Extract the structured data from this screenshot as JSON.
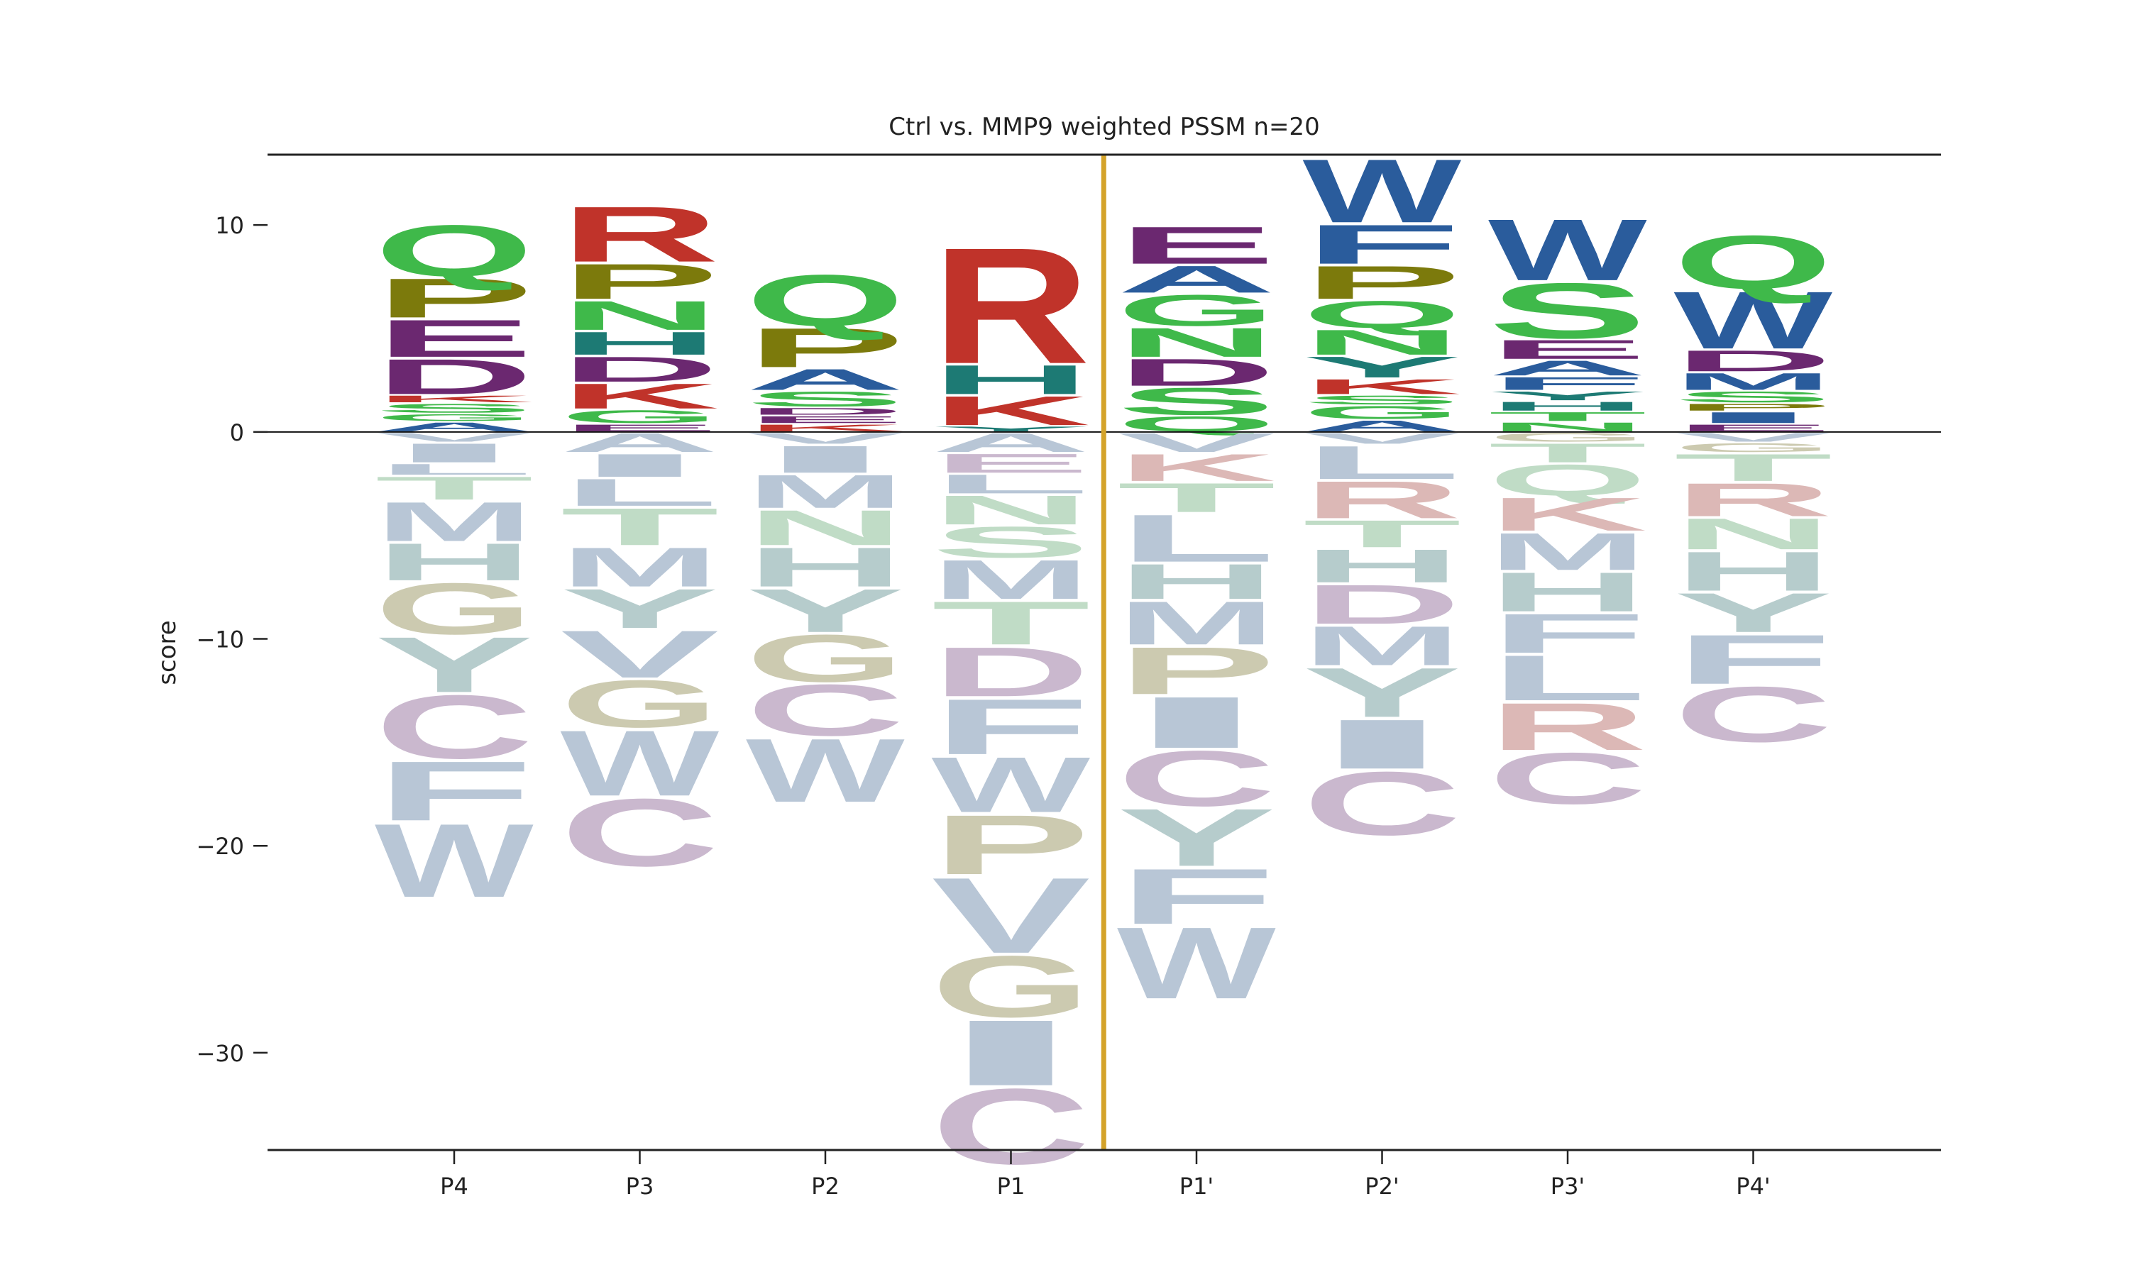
{
  "chart_data": {
    "type": "sequence-logo",
    "title": "Ctrl vs. MMP9 weighted PSSM n=20",
    "xlabel": "",
    "ylabel": "score",
    "ylim": [
      -34.7,
      13.4
    ],
    "yticks": [
      10,
      0,
      -10,
      -20,
      -30
    ],
    "ytick_labels": [
      "10",
      "0",
      "−10",
      "−20",
      "−30"
    ],
    "categories": [
      "P4",
      "P3",
      "P2",
      "P1",
      "P1'",
      "P2'",
      "P3'",
      "P4'"
    ],
    "cleavage_line_after": "P1",
    "cleavage_line_color": "#d4a32a",
    "grid": false,
    "legend": "none",
    "positions": [
      {
        "label": "P4",
        "positive": [
          {
            "letter": "A",
            "value": 0.5
          },
          {
            "letter": "G",
            "value": 0.4
          },
          {
            "letter": "S",
            "value": 0.5
          },
          {
            "letter": "K",
            "value": 0.4
          },
          {
            "letter": "D",
            "value": 1.8
          },
          {
            "letter": "E",
            "value": 1.9
          },
          {
            "letter": "P",
            "value": 2.0
          },
          {
            "letter": "Q",
            "value": 2.6
          }
        ],
        "negative": [
          {
            "letter": "V",
            "value": -0.5
          },
          {
            "letter": "I",
            "value": -1.0
          },
          {
            "letter": "L",
            "value": -0.6
          },
          {
            "letter": "T",
            "value": -1.2
          },
          {
            "letter": "M",
            "value": -2.0
          },
          {
            "letter": "H",
            "value": -1.9
          },
          {
            "letter": "G",
            "value": -2.6
          },
          {
            "letter": "Y",
            "value": -2.8
          },
          {
            "letter": "C",
            "value": -3.2
          },
          {
            "letter": "F",
            "value": -3.0
          },
          {
            "letter": "W",
            "value": -3.7
          }
        ]
      },
      {
        "label": "P3",
        "positive": [
          {
            "letter": "E",
            "value": 0.4
          },
          {
            "letter": "G",
            "value": 0.7
          },
          {
            "letter": "K",
            "value": 1.3
          },
          {
            "letter": "D",
            "value": 1.3
          },
          {
            "letter": "H",
            "value": 1.2
          },
          {
            "letter": "N",
            "value": 1.5
          },
          {
            "letter": "P",
            "value": 1.8
          },
          {
            "letter": "R",
            "value": 2.8
          }
        ],
        "negative": [
          {
            "letter": "A",
            "value": -1.0
          },
          {
            "letter": "I",
            "value": -1.2
          },
          {
            "letter": "L",
            "value": -1.4
          },
          {
            "letter": "T",
            "value": -1.9
          },
          {
            "letter": "M",
            "value": -2.0
          },
          {
            "letter": "Y",
            "value": -2.0
          },
          {
            "letter": "V",
            "value": -2.4
          },
          {
            "letter": "G",
            "value": -2.4
          },
          {
            "letter": "W",
            "value": -3.3
          },
          {
            "letter": "C",
            "value": -3.4
          }
        ]
      },
      {
        "label": "P2",
        "positive": [
          {
            "letter": "K",
            "value": 0.4
          },
          {
            "letter": "E",
            "value": 0.4
          },
          {
            "letter": "D",
            "value": 0.4
          },
          {
            "letter": "S",
            "value": 0.8
          },
          {
            "letter": "A",
            "value": 1.1
          },
          {
            "letter": "P",
            "value": 2.0
          },
          {
            "letter": "Q",
            "value": 2.6
          }
        ],
        "negative": [
          {
            "letter": "V",
            "value": -0.6
          },
          {
            "letter": "I",
            "value": -1.4
          },
          {
            "letter": "M",
            "value": -1.7
          },
          {
            "letter": "N",
            "value": -1.8
          },
          {
            "letter": "H",
            "value": -2.0
          },
          {
            "letter": "Y",
            "value": -2.2
          },
          {
            "letter": "G",
            "value": -2.4
          },
          {
            "letter": "C",
            "value": -2.6
          },
          {
            "letter": "W",
            "value": -3.2
          }
        ]
      },
      {
        "label": "P1",
        "positive": [
          {
            "letter": "Y",
            "value": 0.3
          },
          {
            "letter": "K",
            "value": 1.5
          },
          {
            "letter": "H",
            "value": 1.5
          },
          {
            "letter": "R",
            "value": 5.8
          }
        ],
        "negative": [
          {
            "letter": "A",
            "value": -1.0
          },
          {
            "letter": "E",
            "value": -1.0
          },
          {
            "letter": "L",
            "value": -1.0
          },
          {
            "letter": "N",
            "value": -1.5
          },
          {
            "letter": "S",
            "value": -1.6
          },
          {
            "letter": "M",
            "value": -2.0
          },
          {
            "letter": "T",
            "value": -2.2
          },
          {
            "letter": "D",
            "value": -2.5
          },
          {
            "letter": "F",
            "value": -2.8
          },
          {
            "letter": "W",
            "value": -2.8
          },
          {
            "letter": "P",
            "value": -3.0
          },
          {
            "letter": "V",
            "value": -3.8
          },
          {
            "letter": "G",
            "value": -3.1
          },
          {
            "letter": "I",
            "value": -3.3
          },
          {
            "letter": "C",
            "value": -3.8
          }
        ]
      },
      {
        "label": "P1'",
        "positive": [
          {
            "letter": "Q",
            "value": 0.8
          },
          {
            "letter": "S",
            "value": 1.4
          },
          {
            "letter": "D",
            "value": 1.4
          },
          {
            "letter": "N",
            "value": 1.5
          },
          {
            "letter": "G",
            "value": 1.6
          },
          {
            "letter": "A",
            "value": 1.4
          },
          {
            "letter": "E",
            "value": 1.9
          }
        ],
        "negative": [
          {
            "letter": "V",
            "value": -1.0
          },
          {
            "letter": "K",
            "value": -1.4
          },
          {
            "letter": "T",
            "value": -1.5
          },
          {
            "letter": "L",
            "value": -2.4
          },
          {
            "letter": "H",
            "value": -1.8
          },
          {
            "letter": "M",
            "value": -2.2
          },
          {
            "letter": "P",
            "value": -2.4
          },
          {
            "letter": "I",
            "value": -2.6
          },
          {
            "letter": "C",
            "value": -2.8
          },
          {
            "letter": "Y",
            "value": -2.9
          },
          {
            "letter": "F",
            "value": -2.8
          },
          {
            "letter": "W",
            "value": -3.6
          }
        ]
      },
      {
        "label": "P2'",
        "positive": [
          {
            "letter": "A",
            "value": 0.6
          },
          {
            "letter": "G",
            "value": 0.7
          },
          {
            "letter": "S",
            "value": 0.5
          },
          {
            "letter": "K",
            "value": 0.8
          },
          {
            "letter": "Y",
            "value": 1.1
          },
          {
            "letter": "N",
            "value": 1.3
          },
          {
            "letter": "Q",
            "value": 1.4
          },
          {
            "letter": "P",
            "value": 1.7
          },
          {
            "letter": "F",
            "value": 2.0
          },
          {
            "letter": "W",
            "value": 3.2
          }
        ],
        "negative": [
          {
            "letter": "V",
            "value": -0.6
          },
          {
            "letter": "L",
            "value": -1.7
          },
          {
            "letter": "R",
            "value": -1.9
          },
          {
            "letter": "T",
            "value": -1.4
          },
          {
            "letter": "H",
            "value": -1.7
          },
          {
            "letter": "D",
            "value": -2.0
          },
          {
            "letter": "M",
            "value": -2.0
          },
          {
            "letter": "Y",
            "value": -2.5
          },
          {
            "letter": "I",
            "value": -2.5
          },
          {
            "letter": "C",
            "value": -3.2
          }
        ]
      },
      {
        "label": "P3'",
        "positive": [
          {
            "letter": "N",
            "value": 0.5
          },
          {
            "letter": "T",
            "value": 0.5
          },
          {
            "letter": "H",
            "value": 0.5
          },
          {
            "letter": "Y",
            "value": 0.5
          },
          {
            "letter": "F",
            "value": 0.7
          },
          {
            "letter": "A",
            "value": 0.8
          },
          {
            "letter": "E",
            "value": 1.0
          },
          {
            "letter": "S",
            "value": 2.8
          },
          {
            "letter": "W",
            "value": 3.1
          }
        ],
        "negative": [
          {
            "letter": "G",
            "value": -0.5
          },
          {
            "letter": "T",
            "value": -1.0
          },
          {
            "letter": "Q",
            "value": -1.6
          },
          {
            "letter": "K",
            "value": -1.7
          },
          {
            "letter": "M",
            "value": -1.9
          },
          {
            "letter": "H",
            "value": -2.0
          },
          {
            "letter": "F",
            "value": -2.0
          },
          {
            "letter": "L",
            "value": -2.3
          },
          {
            "letter": "R",
            "value": -2.4
          },
          {
            "letter": "C",
            "value": -2.6
          }
        ]
      },
      {
        "label": "P4'",
        "positive": [
          {
            "letter": "E",
            "value": 0.4
          },
          {
            "letter": "I",
            "value": 0.6
          },
          {
            "letter": "P",
            "value": 0.4
          },
          {
            "letter": "S",
            "value": 0.6
          },
          {
            "letter": "M",
            "value": 0.9
          },
          {
            "letter": "D",
            "value": 1.1
          },
          {
            "letter": "W",
            "value": 2.9
          },
          {
            "letter": "Q",
            "value": 2.7
          }
        ],
        "negative": [
          {
            "letter": "V",
            "value": -0.5
          },
          {
            "letter": "G",
            "value": -0.5
          },
          {
            "letter": "T",
            "value": -1.4
          },
          {
            "letter": "R",
            "value": -1.7
          },
          {
            "letter": "N",
            "value": -1.6
          },
          {
            "letter": "H",
            "value": -2.0
          },
          {
            "letter": "Y",
            "value": -2.0
          },
          {
            "letter": "F",
            "value": -2.5
          },
          {
            "letter": "C",
            "value": -2.8
          }
        ]
      }
    ],
    "colors": {
      "R": "#c0332a",
      "K": "#c0332a",
      "H": "#1d7a74",
      "D": "#6b2870",
      "E": "#6b2870",
      "Q": "#3fb94a",
      "N": "#3fb94a",
      "S": "#3fb94a",
      "T": "#3fb94a",
      "G": "#3fb94a",
      "C": "#3fb94a",
      "Y": "#1d7a74",
      "P": "#7c7a0c",
      "A": "#2a5c9c",
      "V": "#2a5c9c",
      "L": "#2a5c9c",
      "I": "#2a5c9c",
      "M": "#2a5c9c",
      "F": "#2a5c9c",
      "W": "#2a5c9c"
    },
    "negative_colors": {
      "R": "#dcb8b6",
      "K": "#dcb8b6",
      "H": "#b6cccc",
      "D": "#cab8ce",
      "E": "#cab8ce",
      "Q": "#c0dcc6",
      "N": "#c0dcc6",
      "S": "#c0dcc6",
      "T": "#c0dcc6",
      "G": "#cccab0",
      "C": "#cab8ce",
      "Y": "#b6cccc",
      "P": "#cccab0",
      "A": "#b8c6d6",
      "V": "#b8c6d6",
      "L": "#b8c6d6",
      "I": "#b8c6d6",
      "M": "#b8c6d6",
      "F": "#b8c6d6",
      "W": "#b8c6d6"
    }
  }
}
